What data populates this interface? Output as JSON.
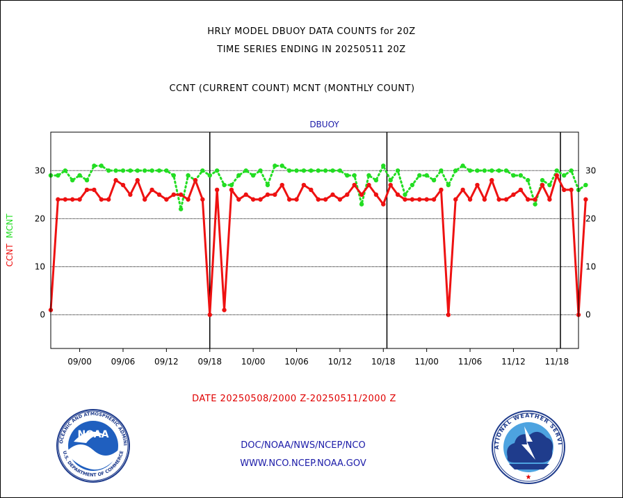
{
  "title_line1": "HRLY MODEL DBUOY DATA COUNTS for 20Z",
  "title_line2": "TIME SERIES ENDING IN 20250511 20Z",
  "title_line3": "CCNT (CURRENT COUNT) MCNT (MONTHLY COUNT)",
  "date_range": "DATE 20250508/2000 Z-20250511/2000 Z",
  "footer_line1": "DOC/NOAA/NWS/NCEP/NCO",
  "footer_line2": "WWW.NCO.NCEP.NOAA.GOV",
  "logos": {
    "noaa": {
      "center_text": "NOAA",
      "ring_text": "NATIONAL OCEANIC AND ATMOSPHERIC ADMINISTRATION",
      "bottom_text": "U.S. DEPARTMENT OF COMMERCE"
    },
    "nws": {
      "ring_text": "NATIONAL WEATHER SERVICE"
    }
  },
  "chart_data": {
    "type": "line",
    "title": "DBUOY",
    "ylabel_left": "CCNT",
    "ylabel_right": "MCNT",
    "xlim": [
      0,
      73
    ],
    "ylim": [
      -7,
      38
    ],
    "yticks": [
      0,
      10,
      20,
      30
    ],
    "grid": true,
    "day_dividers": [
      22,
      46.5,
      70.5
    ],
    "xticks": [
      {
        "x": 4,
        "label": "09/00"
      },
      {
        "x": 10,
        "label": "09/06"
      },
      {
        "x": 16,
        "label": "09/12"
      },
      {
        "x": 22,
        "label": "09/18"
      },
      {
        "x": 28,
        "label": "10/00"
      },
      {
        "x": 34,
        "label": "10/06"
      },
      {
        "x": 40,
        "label": "10/12"
      },
      {
        "x": 46,
        "label": "10/18"
      },
      {
        "x": 52,
        "label": "11/00"
      },
      {
        "x": 58,
        "label": "11/06"
      },
      {
        "x": 64,
        "label": "11/12"
      },
      {
        "x": 70,
        "label": "11/18"
      }
    ],
    "colors": {
      "ccnt": "#ee1111",
      "mcnt": "#22dd22",
      "label_blue": "#1a1aa8"
    },
    "series": [
      {
        "name": "CCNT",
        "style": "solid",
        "values": [
          1,
          24,
          24,
          24,
          24,
          26,
          26,
          24,
          24,
          28,
          27,
          25,
          28,
          24,
          26,
          25,
          24,
          25,
          25,
          24,
          28,
          24,
          0,
          26,
          1,
          26,
          24,
          25,
          24,
          24,
          25,
          25,
          27,
          24,
          24,
          27,
          26,
          24,
          24,
          25,
          24,
          25,
          27,
          25,
          27,
          25,
          23,
          27,
          25,
          24,
          24,
          24,
          24,
          24,
          26,
          0,
          24,
          26,
          24,
          27,
          24,
          28,
          24,
          24,
          25,
          26,
          24,
          24,
          27,
          24,
          29,
          26,
          26,
          0,
          24
        ]
      },
      {
        "name": "MCNT",
        "style": "dotted",
        "values": [
          29,
          29,
          30,
          28,
          29,
          28,
          31,
          31,
          30,
          30,
          30,
          30,
          30,
          30,
          30,
          30,
          30,
          29,
          22,
          29,
          28,
          30,
          29,
          30,
          27,
          27,
          29,
          30,
          29,
          30,
          27,
          31,
          31,
          30,
          30,
          30,
          30,
          30,
          30,
          30,
          30,
          29,
          29,
          23,
          29,
          28,
          31,
          28,
          30,
          25,
          27,
          29,
          29,
          28,
          30,
          27,
          30,
          31,
          30,
          30,
          30,
          30,
          30,
          30,
          29,
          29,
          28,
          23,
          28,
          27,
          30,
          29,
          30,
          26,
          27
        ]
      }
    ]
  }
}
